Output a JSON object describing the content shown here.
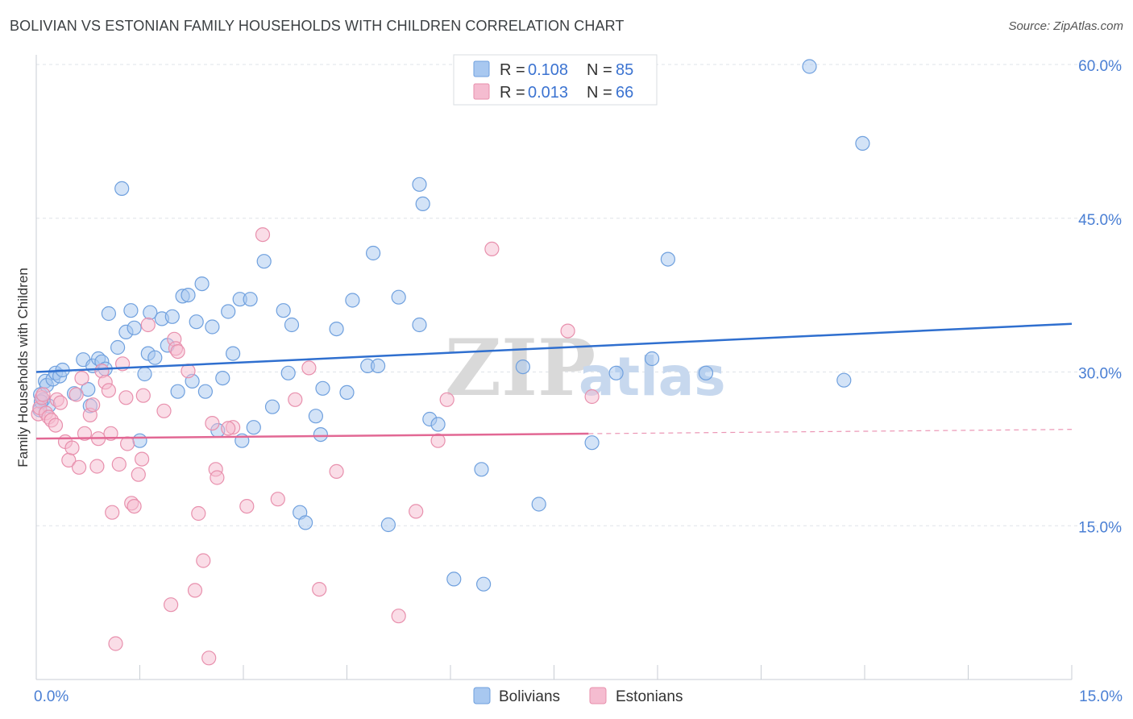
{
  "title": "BOLIVIAN VS ESTONIAN FAMILY HOUSEHOLDS WITH CHILDREN CORRELATION CHART",
  "source": "Source: ZipAtlas.com",
  "watermark": {
    "zip": "ZIP",
    "atlas": "atlas"
  },
  "colors": {
    "blue_fill": "#a8c8f0",
    "blue_stroke": "#6fa0de",
    "blue_line": "#2f6fcf",
    "pink_fill": "#f5bcd0",
    "pink_stroke": "#e890ad",
    "pink_line": "#e26894",
    "grid": "#dfe3e8",
    "axis_label": "#4a7fd4"
  },
  "legend": {
    "rows": [
      {
        "r_label": "R = ",
        "r_value": "0.108",
        "n_label": "N = ",
        "n_value": "85",
        "series": "Bolivians"
      },
      {
        "r_label": "R = ",
        "r_value": "0.013",
        "n_label": "N = ",
        "n_value": "66",
        "series": "Estonians"
      }
    ]
  },
  "chart_data": {
    "type": "scatter",
    "title": "BOLIVIAN VS ESTONIAN FAMILY HOUSEHOLDS WITH CHILDREN CORRELATION CHART",
    "xlabel": "",
    "ylabel": "Family Households with Children",
    "xlim": [
      0,
      15
    ],
    "ylim": [
      0,
      61
    ],
    "x_tick_labels": [
      "0.0%",
      "15.0%"
    ],
    "y_ticks": [
      15,
      30,
      45,
      60
    ],
    "y_tick_labels": [
      "15.0%",
      "30.0%",
      "45.0%",
      "60.0%"
    ],
    "grid": true,
    "legend_position": "top-center",
    "series": [
      {
        "name": "Bolivians",
        "color": "blue",
        "trend": {
          "x": [
            0,
            15
          ],
          "y": [
            30.0,
            34.7
          ]
        },
        "points": [
          [
            0.06,
            27.8
          ],
          [
            0.1,
            27.3
          ],
          [
            0.13,
            29.1
          ],
          [
            0.15,
            28.7
          ],
          [
            0.18,
            26.7
          ],
          [
            0.24,
            29.3
          ],
          [
            0.28,
            29.9
          ],
          [
            0.34,
            29.6
          ],
          [
            0.38,
            30.2
          ],
          [
            0.55,
            27.9
          ],
          [
            0.68,
            31.2
          ],
          [
            0.75,
            28.3
          ],
          [
            0.78,
            26.7
          ],
          [
            0.82,
            30.6
          ],
          [
            0.9,
            31.3
          ],
          [
            0.95,
            31.0
          ],
          [
            1.0,
            30.3
          ],
          [
            1.05,
            35.7
          ],
          [
            1.18,
            32.4
          ],
          [
            1.24,
            47.9
          ],
          [
            1.3,
            33.9
          ],
          [
            1.37,
            36.0
          ],
          [
            1.42,
            34.3
          ],
          [
            1.5,
            23.3
          ],
          [
            1.57,
            29.8
          ],
          [
            1.62,
            31.8
          ],
          [
            1.65,
            35.8
          ],
          [
            1.72,
            31.4
          ],
          [
            1.82,
            35.2
          ],
          [
            1.9,
            32.6
          ],
          [
            1.97,
            35.4
          ],
          [
            2.05,
            28.1
          ],
          [
            2.12,
            37.4
          ],
          [
            2.2,
            37.5
          ],
          [
            2.26,
            29.1
          ],
          [
            2.32,
            34.9
          ],
          [
            2.4,
            38.6
          ],
          [
            2.45,
            28.1
          ],
          [
            2.55,
            34.4
          ],
          [
            2.63,
            24.3
          ],
          [
            2.7,
            29.4
          ],
          [
            2.78,
            35.9
          ],
          [
            2.85,
            31.8
          ],
          [
            2.95,
            37.1
          ],
          [
            2.98,
            23.3
          ],
          [
            3.1,
            37.1
          ],
          [
            3.15,
            24.6
          ],
          [
            3.3,
            40.8
          ],
          [
            3.42,
            26.6
          ],
          [
            3.58,
            36.0
          ],
          [
            3.65,
            29.9
          ],
          [
            3.7,
            34.6
          ],
          [
            3.82,
            16.3
          ],
          [
            3.9,
            15.3
          ],
          [
            4.05,
            25.7
          ],
          [
            4.12,
            23.9
          ],
          [
            4.15,
            28.4
          ],
          [
            4.35,
            34.2
          ],
          [
            4.5,
            28.0
          ],
          [
            4.58,
            37.0
          ],
          [
            4.8,
            30.6
          ],
          [
            4.88,
            41.6
          ],
          [
            4.95,
            30.6
          ],
          [
            5.1,
            15.1
          ],
          [
            5.25,
            37.3
          ],
          [
            5.55,
            34.6
          ],
          [
            5.55,
            48.3
          ],
          [
            5.6,
            46.4
          ],
          [
            5.7,
            25.4
          ],
          [
            5.82,
            24.9
          ],
          [
            6.05,
            9.8
          ],
          [
            6.45,
            20.5
          ],
          [
            6.48,
            9.3
          ],
          [
            7.05,
            30.5
          ],
          [
            7.28,
            17.1
          ],
          [
            8.05,
            23.1
          ],
          [
            8.4,
            29.9
          ],
          [
            8.92,
            31.3
          ],
          [
            9.15,
            41.0
          ],
          [
            9.7,
            29.9
          ],
          [
            11.2,
            59.8
          ],
          [
            11.97,
            52.3
          ],
          [
            11.7,
            29.2
          ],
          [
            0.05,
            26.3
          ],
          [
            0.07,
            27.1
          ]
        ]
      },
      {
        "name": "Estonians",
        "color": "pink",
        "trend": {
          "x": [
            0,
            15
          ],
          "y": [
            23.5,
            24.4
          ]
        },
        "trend_solid_to": 8.0,
        "points": [
          [
            0.03,
            25.9
          ],
          [
            0.05,
            26.5
          ],
          [
            0.08,
            27.5
          ],
          [
            0.1,
            27.8
          ],
          [
            0.14,
            26.0
          ],
          [
            0.18,
            25.6
          ],
          [
            0.22,
            25.3
          ],
          [
            0.28,
            24.8
          ],
          [
            0.3,
            27.3
          ],
          [
            0.35,
            27.0
          ],
          [
            0.42,
            23.2
          ],
          [
            0.47,
            21.4
          ],
          [
            0.52,
            22.6
          ],
          [
            0.58,
            27.8
          ],
          [
            0.62,
            20.7
          ],
          [
            0.66,
            29.4
          ],
          [
            0.7,
            24.0
          ],
          [
            0.78,
            25.8
          ],
          [
            0.82,
            26.8
          ],
          [
            0.88,
            20.8
          ],
          [
            0.9,
            23.5
          ],
          [
            0.95,
            30.1
          ],
          [
            1.0,
            29.0
          ],
          [
            1.05,
            28.2
          ],
          [
            1.08,
            24.0
          ],
          [
            1.1,
            16.3
          ],
          [
            1.15,
            3.5
          ],
          [
            1.2,
            21.0
          ],
          [
            1.25,
            30.8
          ],
          [
            1.3,
            27.5
          ],
          [
            1.32,
            23.0
          ],
          [
            1.38,
            17.2
          ],
          [
            1.42,
            16.9
          ],
          [
            1.48,
            20.0
          ],
          [
            1.53,
            21.5
          ],
          [
            1.55,
            27.7
          ],
          [
            1.62,
            34.6
          ],
          [
            1.85,
            26.2
          ],
          [
            1.95,
            7.3
          ],
          [
            2.0,
            33.2
          ],
          [
            2.02,
            32.3
          ],
          [
            2.05,
            32.0
          ],
          [
            2.2,
            30.1
          ],
          [
            2.3,
            8.7
          ],
          [
            2.35,
            16.2
          ],
          [
            2.42,
            11.6
          ],
          [
            2.5,
            2.1
          ],
          [
            2.55,
            25.0
          ],
          [
            2.6,
            20.5
          ],
          [
            2.62,
            19.7
          ],
          [
            2.85,
            24.6
          ],
          [
            3.05,
            16.9
          ],
          [
            3.28,
            43.4
          ],
          [
            3.5,
            17.6
          ],
          [
            3.75,
            27.3
          ],
          [
            3.95,
            30.4
          ],
          [
            4.1,
            8.8
          ],
          [
            4.35,
            20.3
          ],
          [
            5.25,
            6.2
          ],
          [
            5.5,
            16.4
          ],
          [
            5.82,
            23.3
          ],
          [
            5.95,
            27.3
          ],
          [
            6.6,
            42.0
          ],
          [
            7.7,
            34.0
          ],
          [
            8.05,
            27.6
          ],
          [
            2.78,
            24.5
          ]
        ]
      }
    ]
  },
  "bottom_legend": [
    {
      "label": "Bolivians",
      "color": "blue"
    },
    {
      "label": "Estonians",
      "color": "pink"
    }
  ]
}
